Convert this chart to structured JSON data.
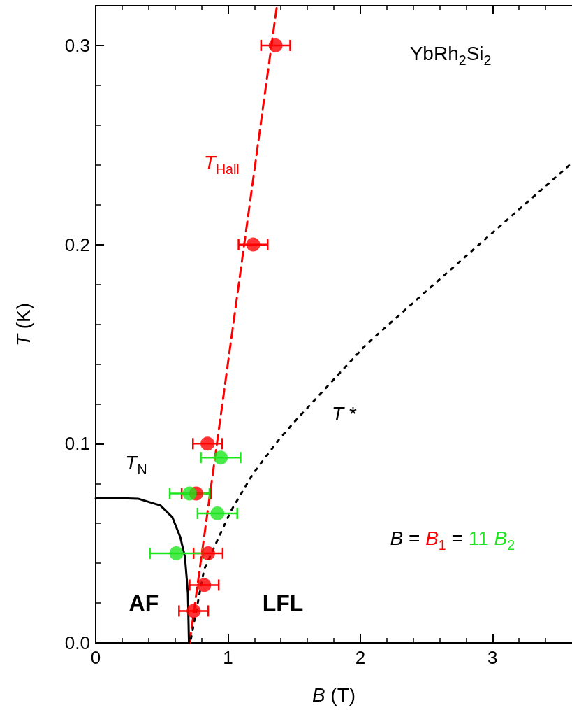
{
  "chart_data": {
    "type": "scatter",
    "xlabel": "B (T)",
    "ylabel": "T (K)",
    "xlim": [
      0,
      3.6
    ],
    "xticks": [
      0,
      1,
      2,
      3
    ],
    "ylim": [
      0,
      0.32
    ],
    "yticks": [
      {
        "value": 0,
        "label": "0.0"
      },
      {
        "value": 0.1,
        "label": "0.1"
      },
      {
        "value": 0.2,
        "label": "0.2"
      },
      {
        "value": 0.3,
        "label": "0.3"
      }
    ],
    "grid": false,
    "legend": false,
    "marker": "circle",
    "series": [
      {
        "color": "#ff0000",
        "x": [
          1.36,
          1.19,
          0.845,
          0.76,
          0.85,
          0.82,
          0.74
        ],
        "values": [
          0.3,
          0.2,
          0.1,
          0.075,
          0.045,
          0.029,
          0.016
        ],
        "xerrors": [
          0.11,
          0.11,
          0.11,
          0.11,
          0.11,
          0.11,
          0.11
        ]
      },
      {
        "color": "#1ee61e",
        "x": [
          0.945,
          0.71,
          0.92,
          0.61
        ],
        "values": [
          0.093,
          0.075,
          0.065,
          0.045
        ],
        "xerrors": [
          0.15,
          0.15,
          0.15,
          0.2
        ]
      },
      {
        "type": "line",
        "name": "T$_{Hall}$",
        "color": "#ff0000",
        "line_style": "dashed",
        "marker": "none",
        "x": [
          0.71,
          1.37
        ],
        "values": [
          0,
          0.32
        ]
      },
      {
        "type": "line",
        "color": "#000000",
        "line_style": "solid",
        "marker": "none",
        "x": [
          0,
          0.2,
          0.32,
          0.49,
          0.58,
          0.64,
          0.675,
          0.697,
          0.705
        ],
        "values": [
          0.0726,
          0.0726,
          0.0724,
          0.069,
          0.063,
          0.053,
          0.043,
          0.025,
          0
        ]
      },
      {
        "type": "line",
        "color": "#000000",
        "line_style": "dotted",
        "marker": "none",
        "x": [
          0.72,
          0.82,
          1.02,
          1.19,
          1.39,
          1.53,
          2.04,
          2.59,
          3.0,
          3.6
        ],
        "values": [
          0.002,
          0.037,
          0.066,
          0.085,
          0.1025,
          0.113,
          0.1495,
          0.182,
          0.206,
          0.241
        ]
      }
    ],
    "annotations": [
      "YbRh$_{2}$Si$_{2}$",
      "T$_{N}$",
      "T *",
      "AF",
      "LFL",
      "B = B$_{1}$ = 11 B$_{2}$"
    ]
  }
}
